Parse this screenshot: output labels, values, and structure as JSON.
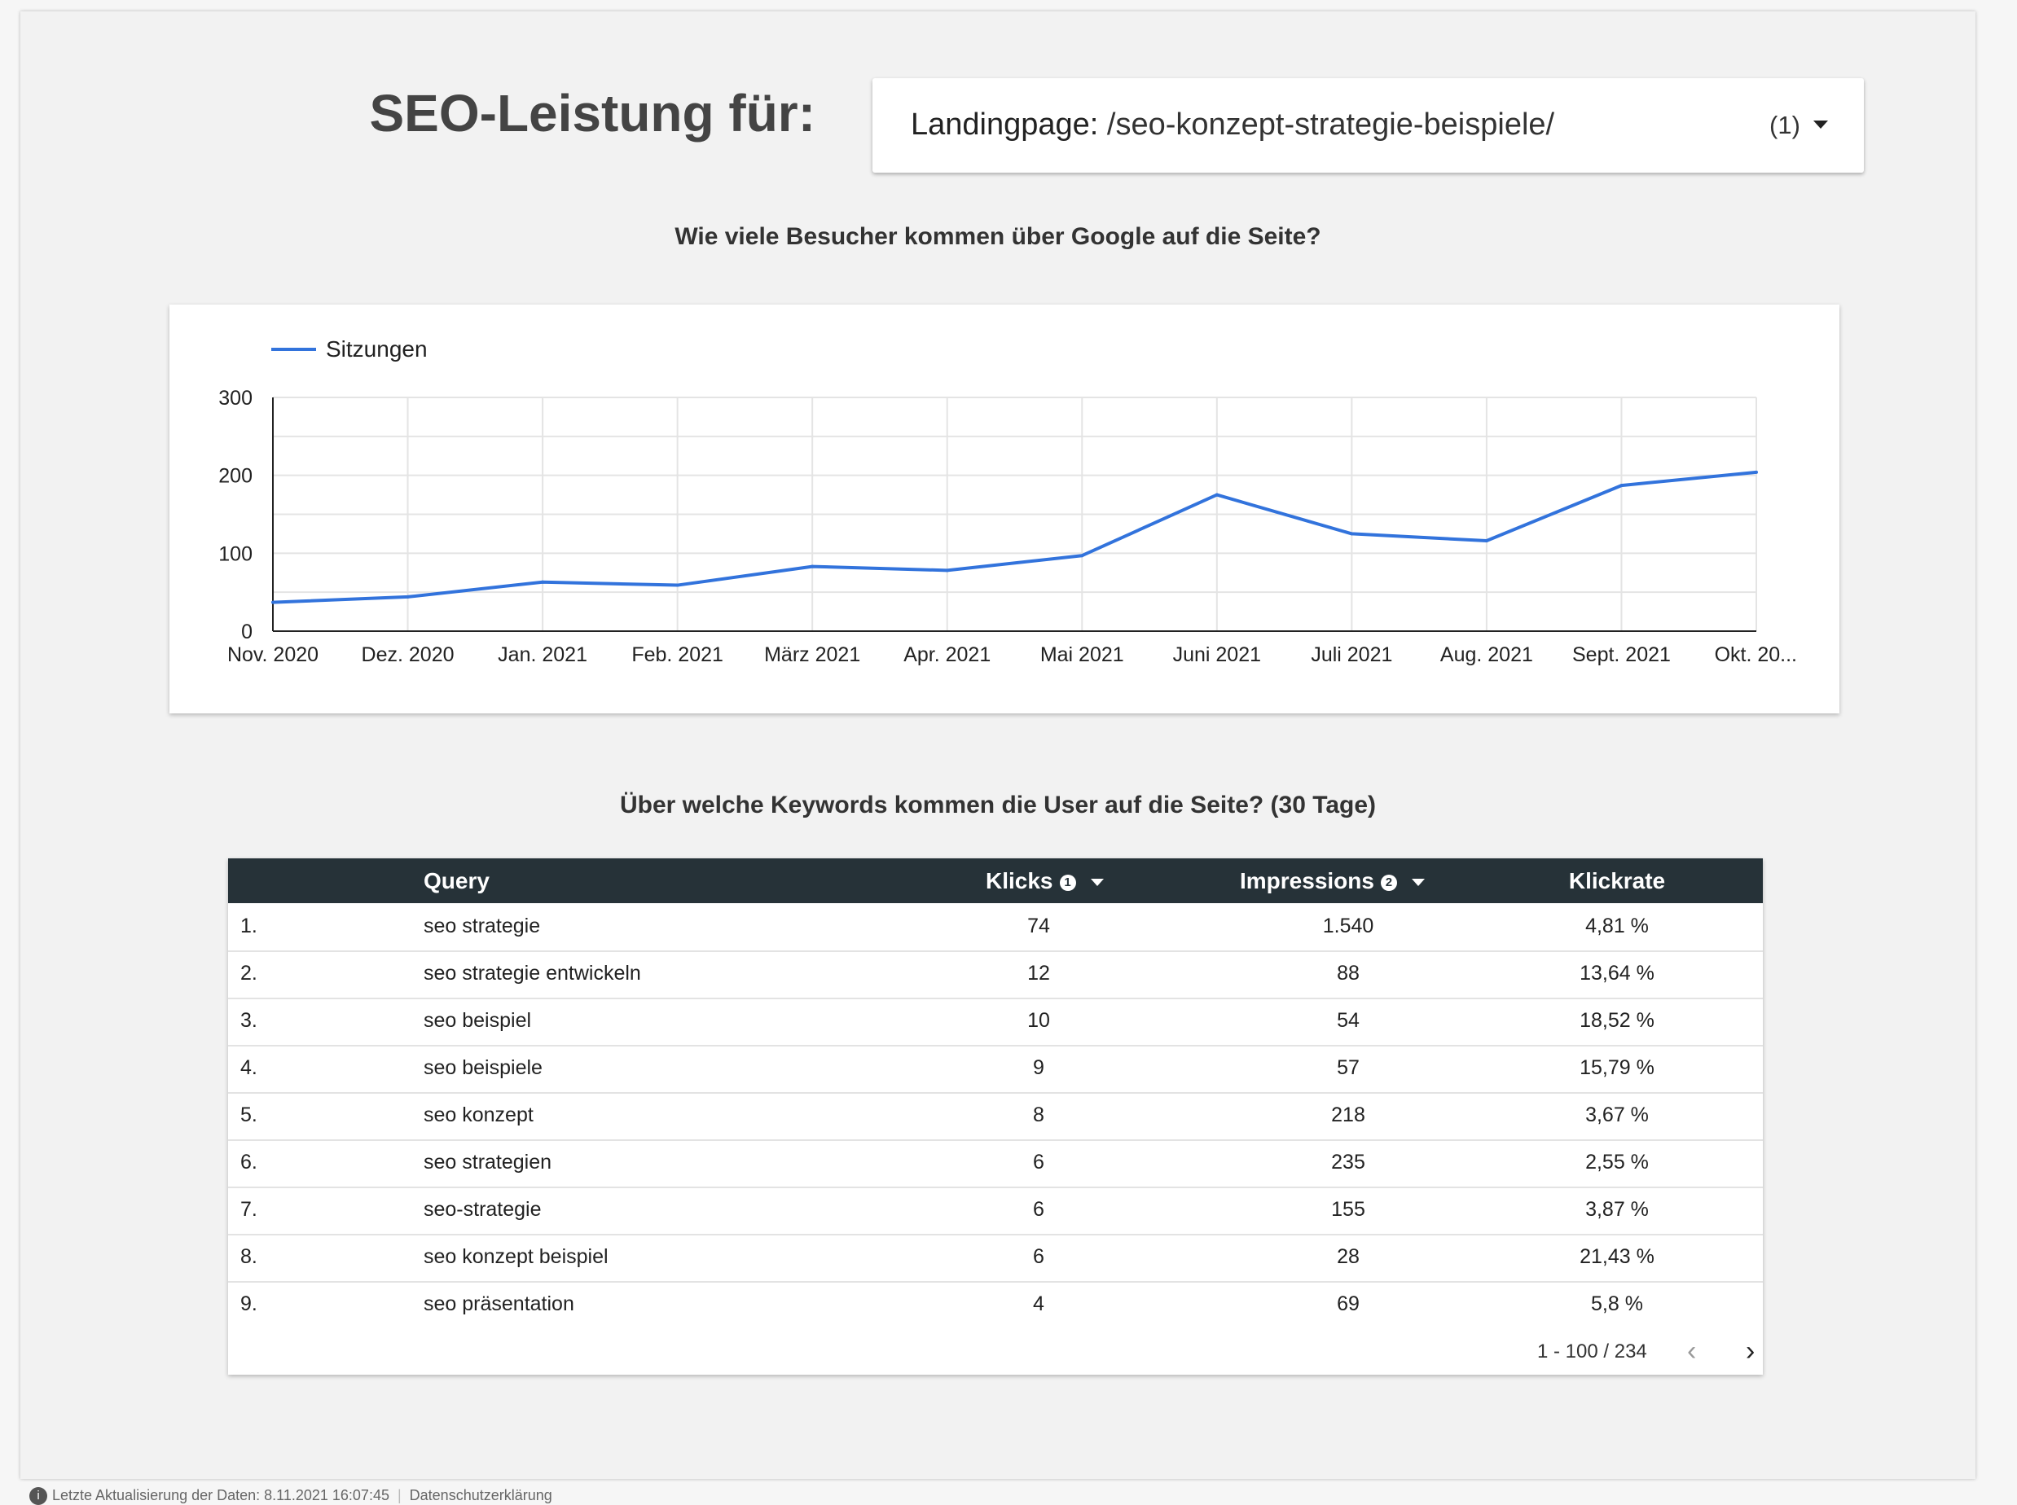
{
  "header": {
    "title": "SEO-Leistung für:",
    "filter": {
      "label": "Landingpage:",
      "value": "/seo-konzept-strategie-beispiele/",
      "count": "(1)"
    }
  },
  "sessions_section": {
    "title": "Wie viele Besucher kommen über Google auf die Seite?"
  },
  "chart_data": {
    "type": "line",
    "title": "",
    "xlabel": "",
    "ylabel": "",
    "categories": [
      "Nov. 2020",
      "Dez. 2020",
      "Jan. 2021",
      "Feb. 2021",
      "März 2021",
      "Apr. 2021",
      "Mai 2021",
      "Juni 2021",
      "Juli 2021",
      "Aug. 2021",
      "Sept. 2021",
      "Okt. 20..."
    ],
    "series": [
      {
        "name": "Sitzungen",
        "values": [
          37,
          44,
          63,
          59,
          83,
          78,
          97,
          175,
          125,
          116,
          187,
          204
        ],
        "color": "#3273dc"
      }
    ],
    "ylim": [
      0,
      300
    ],
    "yticks": [
      "0",
      "100",
      "200",
      "300"
    ],
    "grid": true,
    "legend": "top-left"
  },
  "keywords_section": {
    "title": "Über welche Keywords kommen die User auf die Seite? (30 Tage)"
  },
  "table": {
    "columns": {
      "query": "Query",
      "klicks": "Klicks",
      "impressions": "Impressions",
      "klickrate": "Klickrate"
    },
    "info_icons": {
      "klicks": "1",
      "impressions": "2"
    },
    "rows": [
      {
        "idx": "1.",
        "query": "seo strategie",
        "klicks": "74",
        "impressions": "1.540",
        "rate": "4,81 %"
      },
      {
        "idx": "2.",
        "query": "seo strategie entwickeln",
        "klicks": "12",
        "impressions": "88",
        "rate": "13,64 %"
      },
      {
        "idx": "3.",
        "query": "seo beispiel",
        "klicks": "10",
        "impressions": "54",
        "rate": "18,52 %"
      },
      {
        "idx": "4.",
        "query": "seo beispiele",
        "klicks": "9",
        "impressions": "57",
        "rate": "15,79 %"
      },
      {
        "idx": "5.",
        "query": "seo konzept",
        "klicks": "8",
        "impressions": "218",
        "rate": "3,67 %"
      },
      {
        "idx": "6.",
        "query": "seo strategien",
        "klicks": "6",
        "impressions": "235",
        "rate": "2,55 %"
      },
      {
        "idx": "7.",
        "query": "seo-strategie",
        "klicks": "6",
        "impressions": "155",
        "rate": "3,87 %"
      },
      {
        "idx": "8.",
        "query": "seo konzept beispiel",
        "klicks": "6",
        "impressions": "28",
        "rate": "21,43 %"
      },
      {
        "idx": "9.",
        "query": "seo präsentation",
        "klicks": "4",
        "impressions": "69",
        "rate": "5,8 %"
      }
    ],
    "pagination": "1 - 100 / 234"
  },
  "footer": {
    "last_update": "Letzte Aktualisierung der Daten: 8.11.2021 16:07:45",
    "privacy": "Datenschutzerklärung"
  }
}
